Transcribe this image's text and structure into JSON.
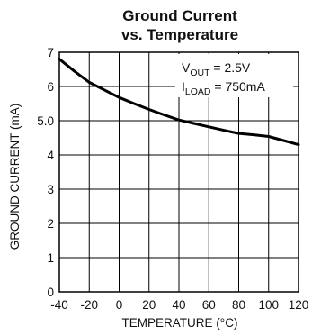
{
  "chart_data": {
    "type": "line",
    "title": "Ground Current",
    "subtitle": "vs. Temperature",
    "xlabel": "TEMPERATURE (°C)",
    "ylabel": "GROUND CURRENT (mA)",
    "xlim": [
      -40,
      120
    ],
    "ylim": [
      0,
      7
    ],
    "x_ticks": [
      -40,
      -20,
      0,
      20,
      40,
      60,
      80,
      100,
      120
    ],
    "x_tick_labels": [
      "-40",
      "-20",
      "0",
      "20",
      "40",
      "60",
      "80",
      "100",
      "120"
    ],
    "y_ticks": [
      0,
      1,
      2,
      3,
      4,
      5,
      6,
      7
    ],
    "y_tick_labels": [
      "0",
      "1",
      "2",
      "3",
      "4",
      "5.0",
      "6",
      "7"
    ],
    "grid": true,
    "line_color": "#000000",
    "series": [
      {
        "x": [
          -40,
          -30,
          -20,
          -10,
          0,
          10,
          20,
          30,
          40,
          50,
          60,
          70,
          80,
          90,
          100,
          110,
          120
        ],
        "values": [
          6.8,
          6.45,
          6.12,
          5.9,
          5.68,
          5.5,
          5.33,
          5.17,
          5.02,
          4.92,
          4.82,
          4.72,
          4.63,
          4.59,
          4.54,
          4.42,
          4.3
        ]
      }
    ],
    "annotation": {
      "line1_main": "V",
      "line1_sub": "OUT",
      "line1_rest": " = 2.5V",
      "line2_main": "I",
      "line2_sub": "LOAD",
      "line2_rest": " = 750mA"
    }
  }
}
